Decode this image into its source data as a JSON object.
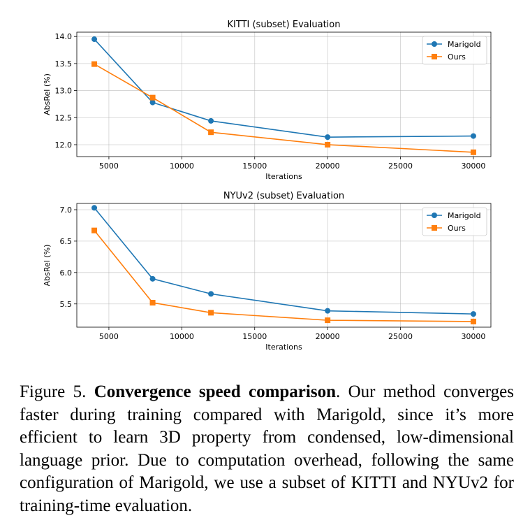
{
  "chart_data": [
    {
      "type": "line",
      "title": "KITTI (subset) Evaluation",
      "xlabel": "Iterations",
      "ylabel": "AbsRel (%)",
      "x": [
        4000,
        8000,
        12000,
        20000,
        30000
      ],
      "xlim": [
        2800,
        31200
      ],
      "ylim": [
        11.78,
        14.08
      ],
      "xticks": [
        5000,
        10000,
        15000,
        20000,
        25000,
        30000
      ],
      "yticks": [
        12.0,
        12.5,
        13.0,
        13.5,
        14.0
      ],
      "tick_format": "1",
      "grid": true,
      "legend": "top-right",
      "series": [
        {
          "name": "Marigold",
          "marker": "circle",
          "color": "#1f77b4",
          "values": [
            13.95,
            12.78,
            12.44,
            12.14,
            12.16
          ]
        },
        {
          "name": "Ours",
          "marker": "square",
          "color": "#ff7f0e",
          "values": [
            13.49,
            12.87,
            12.23,
            12.0,
            11.86
          ]
        }
      ]
    },
    {
      "type": "line",
      "title": "NYUv2 (subset) Evaluation",
      "xlabel": "Iterations",
      "ylabel": "AbsRel (%)",
      "x": [
        4000,
        8000,
        12000,
        20000,
        30000
      ],
      "xlim": [
        2800,
        31200
      ],
      "ylim": [
        5.13,
        7.1
      ],
      "xticks": [
        5000,
        10000,
        15000,
        20000,
        25000,
        30000
      ],
      "yticks": [
        5.5,
        6.0,
        6.5,
        7.0
      ],
      "tick_format": "1",
      "grid": true,
      "legend": "top-right",
      "series": [
        {
          "name": "Marigold",
          "marker": "circle",
          "color": "#1f77b4",
          "values": [
            7.03,
            5.9,
            5.66,
            5.39,
            5.34
          ]
        },
        {
          "name": "Ours",
          "marker": "square",
          "color": "#ff7f0e",
          "values": [
            6.67,
            5.52,
            5.36,
            5.24,
            5.22
          ]
        }
      ]
    }
  ],
  "caption": {
    "label": "Figure 5.",
    "bold": "Convergence speed comparison",
    "text": ". Our method converges faster during training compared with Marigold, since it’s more efficient to learn 3D property from condensed, low-dimensional language prior. Due to computation overhead, following the same configuration of Marigold, we use a subset of KITTI and NYUv2 for training-time evaluation."
  }
}
